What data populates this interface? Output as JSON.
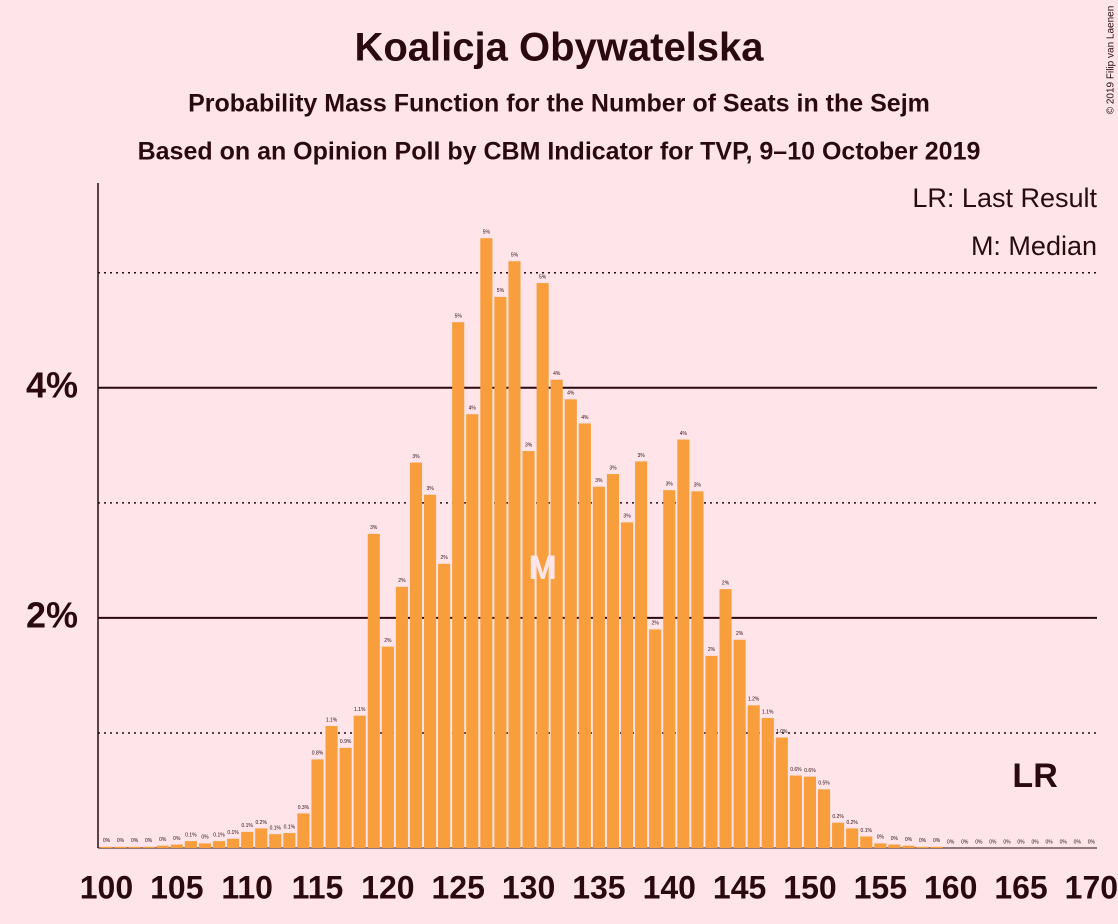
{
  "chart_data": {
    "type": "bar",
    "title": "Koalicja Obywatelska",
    "subtitle": "Probability Mass Function for the Number of Seats in the Sejm",
    "subtitle2": "Based on an Opinion Poll by CBM Indicator for TVP, 9–10 October 2019",
    "credit": "© 2019 Filip van Laenen",
    "color": "#f99e3c",
    "x": [
      100,
      101,
      102,
      103,
      104,
      105,
      106,
      107,
      108,
      109,
      110,
      111,
      112,
      113,
      114,
      115,
      116,
      117,
      118,
      119,
      120,
      121,
      122,
      123,
      124,
      125,
      126,
      127,
      128,
      129,
      130,
      131,
      132,
      133,
      134,
      135,
      136,
      137,
      138,
      139,
      140,
      141,
      142,
      143,
      144,
      145,
      146,
      147,
      148,
      149,
      150,
      151,
      152,
      153,
      154,
      155,
      156,
      157,
      158,
      159,
      160,
      161,
      162,
      163,
      164,
      165,
      166,
      167,
      168,
      169,
      170
    ],
    "values": [
      0.01,
      0.01,
      0.01,
      0.01,
      0.02,
      0.03,
      0.06,
      0.04,
      0.06,
      0.08,
      0.14,
      0.17,
      0.12,
      0.13,
      0.3,
      0.77,
      1.06,
      0.87,
      1.15,
      2.73,
      1.75,
      2.27,
      3.35,
      3.07,
      2.47,
      4.57,
      3.77,
      5.3,
      4.79,
      5.1,
      3.45,
      4.91,
      4.07,
      3.9,
      3.69,
      3.14,
      3.25,
      2.83,
      3.36,
      1.9,
      3.11,
      3.55,
      3.1,
      1.67,
      2.25,
      1.81,
      1.24,
      1.13,
      0.96,
      0.63,
      0.62,
      0.51,
      0.22,
      0.17,
      0.1,
      0.04,
      0.03,
      0.02,
      0.01,
      0.01,
      0,
      0,
      0,
      0,
      0,
      0,
      0,
      0,
      0,
      0,
      0
    ],
    "value_labels": [
      "0%",
      "0%",
      "0%",
      "0%",
      "0%",
      "0%",
      "0.1%",
      "0%",
      "0.1%",
      "0.1%",
      "0.1%",
      "0.2%",
      "0.1%",
      "0.1%",
      "0.3%",
      "0.8%",
      "1.1%",
      "0.9%",
      "1.1%",
      "3%",
      "2%",
      "2%",
      "3%",
      "3%",
      "2%",
      "5%",
      "4%",
      "5%",
      "5%",
      "5%",
      "3%",
      "5%",
      "4%",
      "4%",
      "4%",
      "3%",
      "3%",
      "3%",
      "3%",
      "2%",
      "3%",
      "4%",
      "3%",
      "2%",
      "2%",
      "2%",
      "1.2%",
      "1.1%",
      "1.0%",
      "0.6%",
      "0.6%",
      "0.5%",
      "0.2%",
      "0.2%",
      "0.1%",
      "0%",
      "0%",
      "0%",
      "0%",
      "0%",
      "0%",
      "0%",
      "0%",
      "0%",
      "0%",
      "0%",
      "0%",
      "0%",
      "0%",
      "0%",
      "0%"
    ],
    "xlim": [
      99.4,
      170.4
    ],
    "xticks": [
      100,
      105,
      110,
      115,
      120,
      125,
      130,
      135,
      140,
      145,
      150,
      155,
      160,
      165,
      170
    ],
    "ylim": [
      0,
      5.78
    ],
    "yticks": [
      {
        "value": 2,
        "label": "2%"
      },
      {
        "value": 4,
        "label": "4%"
      }
    ],
    "minor_yticks": [
      1,
      3,
      5
    ],
    "grid": true,
    "legend_notes": [
      "LR: Last Result",
      "M: Median"
    ],
    "median": {
      "label": "M",
      "x": 131
    },
    "last_result": {
      "label": "LR",
      "x": 166
    }
  }
}
